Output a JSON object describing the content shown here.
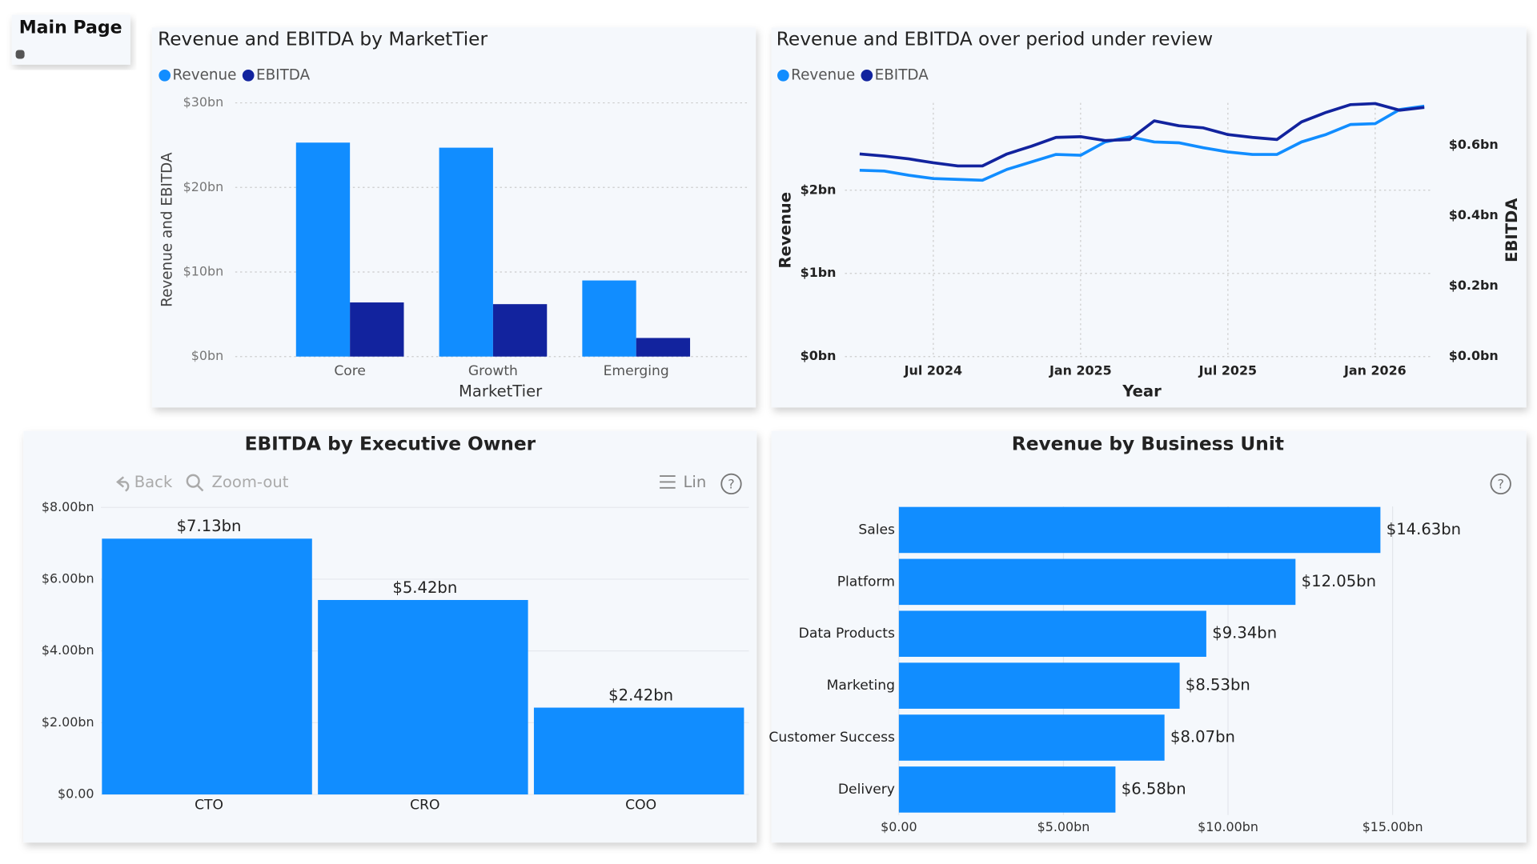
{
  "nav": {
    "button": "Main Page"
  },
  "toolbar": {
    "back": "Back",
    "zoom_out": "Zoom-out",
    "list": "Lin"
  },
  "chart_data": [
    {
      "type": "bar",
      "title": "Revenue and EBITDA by MarketTier",
      "x_label": "MarketTier",
      "y_label": "Revenue and EBITDA",
      "categories": [
        "Core",
        "Growth",
        "Emerging"
      ],
      "series": [
        {
          "name": "Revenue",
          "color": "#118dff",
          "values": [
            25.3,
            24.7,
            9.0
          ]
        },
        {
          "name": "EBITDA",
          "color": "#12239e",
          "values": [
            6.4,
            6.2,
            2.2
          ]
        }
      ],
      "ylim": [
        0,
        30
      ],
      "yticks": [
        {
          "value": 0,
          "label": "$0bn"
        },
        {
          "value": 10,
          "label": "$10bn"
        },
        {
          "value": 20,
          "label": "$20bn"
        },
        {
          "value": 30,
          "label": "$30bn"
        }
      ],
      "grid": true
    },
    {
      "type": "line",
      "title": "Revenue and EBITDA over period under review",
      "x_label": "Year",
      "y_label": "Revenue",
      "y2_label": "EBITDA",
      "x": [
        "2024-04",
        "2024-05",
        "2024-06",
        "2024-07",
        "2024-08",
        "2024-09",
        "2024-10",
        "2024-11",
        "2024-12",
        "2025-01",
        "2025-02",
        "2025-03",
        "2025-04",
        "2025-05",
        "2025-06",
        "2025-07",
        "2025-08",
        "2025-09",
        "2025-10",
        "2025-11",
        "2025-12",
        "2026-01",
        "2026-02",
        "2026-03"
      ],
      "xticks": [
        {
          "value": "2024-07",
          "label": "Jul 2024"
        },
        {
          "value": "2025-01",
          "label": "Jan 2025"
        },
        {
          "value": "2025-07",
          "label": "Jul 2025"
        },
        {
          "value": "2026-01",
          "label": "Jan 2026"
        }
      ],
      "series": [
        {
          "name": "Revenue",
          "color": "#118dff",
          "values": [
            2.24,
            2.23,
            2.18,
            2.14,
            2.13,
            2.12,
            2.25,
            2.34,
            2.43,
            2.42,
            2.58,
            2.64,
            2.58,
            2.57,
            2.51,
            2.46,
            2.43,
            2.43,
            2.58,
            2.67,
            2.79,
            2.8,
            2.97,
            3.01
          ]
        },
        {
          "name": "EBITDA",
          "color": "#12239e",
          "axis": "y2",
          "values": [
            0.575,
            0.569,
            0.561,
            0.55,
            0.541,
            0.541,
            0.575,
            0.597,
            0.622,
            0.624,
            0.613,
            0.616,
            0.669,
            0.655,
            0.649,
            0.63,
            0.622,
            0.616,
            0.666,
            0.693,
            0.715,
            0.718,
            0.699,
            0.707
          ]
        }
      ],
      "ylim": [
        0,
        3.05
      ],
      "yticks": [
        {
          "value": 0,
          "label": "$0bn"
        },
        {
          "value": 1,
          "label": "$1bn"
        },
        {
          "value": 2,
          "label": "$2bn"
        }
      ],
      "y2lim": [
        0,
        0.72
      ],
      "y2ticks": [
        {
          "value": 0,
          "label": "$0.0bn"
        },
        {
          "value": 0.2,
          "label": "$0.2bn"
        },
        {
          "value": 0.4,
          "label": "$0.4bn"
        },
        {
          "value": 0.6,
          "label": "$0.6bn"
        }
      ],
      "grid": true
    },
    {
      "type": "bar",
      "title": "EBITDA by Executive Owner",
      "categories": [
        "CTO",
        "CRO",
        "COO"
      ],
      "values": [
        7.13,
        5.42,
        2.42
      ],
      "value_labels": [
        "$7.13bn",
        "$5.42bn",
        "$2.42bn"
      ],
      "color": "#118dff",
      "ylim": [
        0,
        8
      ],
      "yticks": [
        {
          "value": 0,
          "label": "$0.00"
        },
        {
          "value": 2,
          "label": "$2.00bn"
        },
        {
          "value": 4,
          "label": "$4.00bn"
        },
        {
          "value": 6,
          "label": "$6.00bn"
        },
        {
          "value": 8,
          "label": "$8.00bn"
        }
      ],
      "grid": true
    },
    {
      "type": "barh",
      "title": "Revenue by Business Unit",
      "categories": [
        "Sales",
        "Platform",
        "Data Products",
        "Marketing",
        "Customer Success",
        "Delivery"
      ],
      "values": [
        14.63,
        12.05,
        9.34,
        8.53,
        8.07,
        6.58
      ],
      "value_labels": [
        "$14.63bn",
        "$12.05bn",
        "$9.34bn",
        "$8.53bn",
        "$8.07bn",
        "$6.58bn"
      ],
      "color": "#118dff",
      "xlim": [
        0,
        19
      ],
      "xticks": [
        {
          "value": 0,
          "label": "$0.00"
        },
        {
          "value": 5,
          "label": "$5.00bn"
        },
        {
          "value": 10,
          "label": "$10.00bn"
        },
        {
          "value": 15,
          "label": "$15.00bn"
        }
      ],
      "grid": true
    }
  ]
}
